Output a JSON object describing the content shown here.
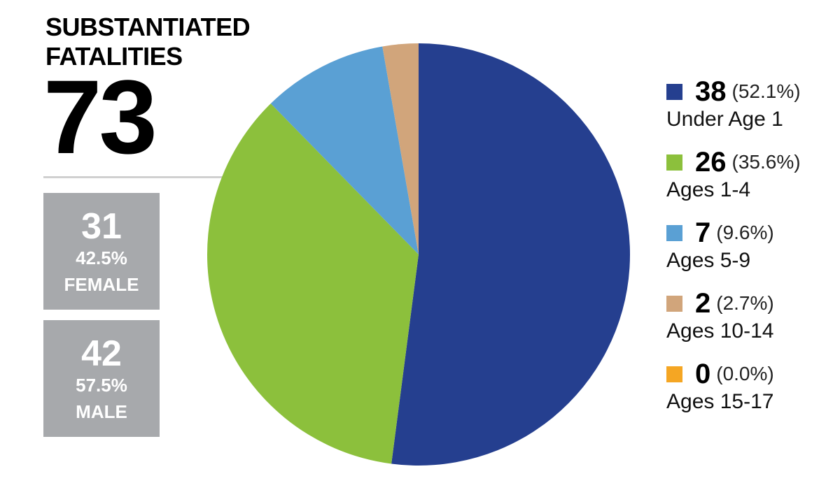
{
  "summary": {
    "title": "SUBSTANTIATED FATALITIES",
    "total": "73",
    "breakdown": [
      {
        "count": "31",
        "percent": "42.5%",
        "label": "FEMALE"
      },
      {
        "count": "42",
        "percent": "57.5%",
        "label": "MALE"
      }
    ]
  },
  "chart_data": {
    "type": "pie",
    "categories": [
      "Under Age 1",
      "Ages 1-4",
      "Ages 5-9",
      "Ages 10-14",
      "Ages 15-17"
    ],
    "values": [
      38,
      26,
      7,
      2,
      0
    ],
    "percentages": [
      {
        "value": 52.1,
        "label": "(52.1%)"
      },
      {
        "value": 35.6,
        "label": "(35.6%)"
      },
      {
        "value": 9.6,
        "label": "(9.6%)"
      },
      {
        "value": 2.7,
        "label": "(2.7%)"
      },
      {
        "value": 0.0,
        "label": "(0.0%)"
      }
    ],
    "colors": [
      "#253f8f",
      "#8cc03c",
      "#5aa0d4",
      "#d1a57b",
      "#f5a623"
    ]
  }
}
